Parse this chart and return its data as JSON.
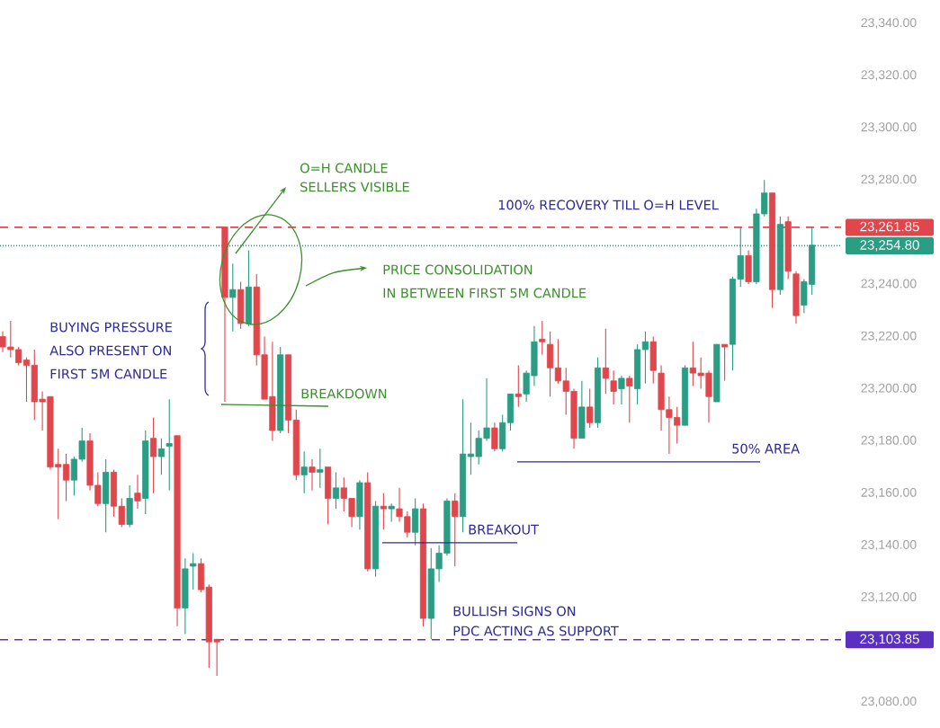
{
  "chart_data": {
    "type": "candlestick",
    "categories": [
      null,
      null,
      null,
      null,
      null,
      null,
      null,
      null,
      null,
      null,
      null,
      null,
      null,
      null,
      null,
      null,
      null,
      null,
      null,
      null,
      null,
      null,
      null,
      null,
      null,
      null,
      null,
      null,
      null,
      null,
      null,
      null,
      null,
      null,
      null,
      null,
      null,
      null,
      null,
      null,
      null,
      null,
      null,
      null,
      null,
      null,
      null,
      null,
      null,
      null,
      null,
      null,
      null,
      null,
      null,
      null,
      null,
      null,
      null,
      null,
      null,
      null,
      null,
      null,
      null,
      null,
      null,
      null,
      null,
      null,
      null,
      null,
      null,
      null,
      null,
      null,
      null,
      null,
      null,
      null,
      null,
      null,
      null,
      null,
      null,
      null,
      null,
      null,
      null,
      null,
      null,
      null,
      null,
      null,
      null,
      null,
      null,
      null,
      null,
      null,
      null,
      null,
      null
    ],
    "ohlc": [
      [
        23220,
        23222,
        23214,
        23216
      ],
      [
        23216,
        23226,
        23212,
        23215
      ],
      [
        23215,
        23216,
        23209,
        23210
      ],
      [
        23211,
        23212,
        23195,
        23209
      ],
      [
        23209,
        23215,
        23188,
        23195
      ],
      [
        23196,
        23199,
        23184,
        23195
      ],
      [
        23197,
        23197,
        23169,
        23170
      ],
      [
        23171,
        23177,
        23150,
        23170
      ],
      [
        23171,
        23175,
        23157,
        23165
      ],
      [
        23165,
        23174,
        23159,
        23173
      ],
      [
        23173,
        23185,
        23172,
        23180
      ],
      [
        23180,
        23183,
        23161,
        23163
      ],
      [
        23163,
        23168,
        23155,
        23156
      ],
      [
        23156,
        23173,
        23145,
        23168
      ],
      [
        23168,
        23169,
        23151,
        23155
      ],
      [
        23155,
        23158,
        23147,
        23148
      ],
      [
        23148,
        23163,
        23147,
        23158
      ],
      [
        23160,
        23167,
        23154,
        23157
      ],
      [
        23158,
        23184,
        23152,
        23180
      ],
      [
        23181,
        23189,
        23160,
        23174
      ],
      [
        23174,
        23181,
        23167,
        23177
      ],
      [
        23178,
        23196,
        23161,
        23179
      ],
      [
        23182,
        23182,
        23109,
        23116
      ],
      [
        23116,
        23135,
        23106,
        23131
      ],
      [
        23132,
        23137,
        23123,
        23133
      ],
      [
        23133,
        23135,
        23122,
        23123
      ],
      [
        23124,
        23125,
        23093,
        23103
      ],
      [
        23104,
        23104,
        23090,
        23103
      ],
      [
        23262,
        23262,
        23195,
        23235
      ],
      [
        23235,
        23248,
        23222,
        23238
      ],
      [
        23238,
        23241,
        23223,
        23225
      ],
      [
        23225,
        23253,
        23224,
        23239
      ],
      [
        23239,
        23244,
        23209,
        23213
      ],
      [
        23213,
        23220,
        23196,
        23196
      ],
      [
        23197,
        23218,
        23180,
        23184
      ],
      [
        23184,
        23216,
        23183,
        23213
      ],
      [
        23213,
        23213,
        23183,
        23188
      ],
      [
        23188,
        23192,
        23165,
        23167
      ],
      [
        23167,
        23176,
        23160,
        23170
      ],
      [
        23170,
        23173,
        23161,
        23168
      ],
      [
        23168,
        23177,
        23162,
        23169
      ],
      [
        23170,
        23170,
        23148,
        23158
      ],
      [
        23158,
        23168,
        23154,
        23162
      ],
      [
        23162,
        23166,
        23153,
        23158
      ],
      [
        23158,
        23158,
        23147,
        23151
      ],
      [
        23151,
        23165,
        23146,
        23164
      ],
      [
        23164,
        23168,
        23130,
        23131
      ],
      [
        23131,
        23157,
        23128,
        23155
      ],
      [
        23155,
        23160,
        23146,
        23154
      ],
      [
        23154,
        23156,
        23149,
        23155
      ],
      [
        23154,
        23162,
        23149,
        23151
      ],
      [
        23151,
        23153,
        23143,
        23145
      ],
      [
        23145,
        23158,
        23140,
        23154
      ],
      [
        23154,
        23156,
        23109,
        23112
      ],
      [
        23112,
        23139,
        23104,
        23131
      ],
      [
        23131,
        23140,
        23126,
        23137
      ],
      [
        23137,
        23158,
        23136,
        23157
      ],
      [
        23157,
        23160,
        23132,
        23151
      ],
      [
        23151,
        23196,
        23145,
        23175
      ],
      [
        23174,
        23187,
        23167,
        23175
      ],
      [
        23174,
        23184,
        23171,
        23181
      ],
      [
        23181,
        23204,
        23180,
        23185
      ],
      [
        23185,
        23187,
        23176,
        23177
      ],
      [
        23177,
        23190,
        23176,
        23187
      ],
      [
        23187,
        23198,
        23184,
        23198
      ],
      [
        23198,
        23209,
        23193,
        23197
      ],
      [
        23198,
        23207,
        23195,
        23206
      ],
      [
        23205,
        23224,
        23201,
        23218
      ],
      [
        23219,
        23226,
        23213,
        23218
      ],
      [
        23217,
        23222,
        23197,
        23208
      ],
      [
        23208,
        23219,
        23202,
        23203
      ],
      [
        23203,
        23208,
        23190,
        23199
      ],
      [
        23199,
        23200,
        23177,
        23181
      ],
      [
        23181,
        23203,
        23181,
        23193
      ],
      [
        23193,
        23200,
        23185,
        23187
      ],
      [
        23187,
        23212,
        23185,
        23208
      ],
      [
        23208,
        23223,
        23198,
        23204
      ],
      [
        23203,
        23207,
        23194,
        23199
      ],
      [
        23200,
        23205,
        23194,
        23204
      ],
      [
        23204,
        23205,
        23187,
        23201
      ],
      [
        23200,
        23217,
        23194,
        23215
      ],
      [
        23215,
        23222,
        23202,
        23218
      ],
      [
        23218,
        23220,
        23202,
        23207
      ],
      [
        23206,
        23209,
        23184,
        23192
      ],
      [
        23192,
        23197,
        23175,
        23189
      ],
      [
        23189,
        23193,
        23179,
        23186
      ],
      [
        23186,
        23209,
        23186,
        23208
      ],
      [
        23208,
        23218,
        23201,
        23206
      ],
      [
        23206,
        23212,
        23200,
        23205
      ],
      [
        23206,
        23207,
        23187,
        23197
      ],
      [
        23195,
        23217,
        23195,
        23217
      ],
      [
        23217,
        23217,
        23203,
        23216
      ],
      [
        23217,
        23243,
        23207,
        23242
      ],
      [
        23242,
        23262,
        23239,
        23251
      ],
      [
        23251,
        23253,
        23240,
        23241
      ],
      [
        23241,
        23269,
        23240,
        23267
      ],
      [
        23267,
        23280,
        23266,
        23275
      ],
      [
        23275,
        23275,
        23231,
        23238
      ],
      [
        23238,
        23266,
        23236,
        23263
      ],
      [
        23264,
        23266,
        23242,
        23245
      ],
      [
        23244,
        23245,
        23225,
        23228
      ],
      [
        23232,
        23242,
        23229,
        23241
      ],
      [
        23240,
        23262,
        23236,
        23255
      ]
    ],
    "ylim": [
      23080,
      23340
    ],
    "yticks": [
      {
        "value": 23080,
        "label": "23,080.00"
      },
      {
        "value": 23120,
        "label": "23,120.00"
      },
      {
        "value": 23140,
        "label": "23,140.00"
      },
      {
        "value": 23160,
        "label": "23,160.00"
      },
      {
        "value": 23180,
        "label": "23,180.00"
      },
      {
        "value": 23200,
        "label": "23,200.00"
      },
      {
        "value": 23220,
        "label": "23,220.00"
      },
      {
        "value": 23240,
        "label": "23,240.00"
      },
      {
        "value": 23280,
        "label": "23,280.00"
      },
      {
        "value": 23300,
        "label": "23,300.00"
      },
      {
        "value": 23320,
        "label": "23,320.00"
      },
      {
        "value": 23340,
        "label": "23,340.00"
      }
    ],
    "tick_labels": "y",
    "ref_lines": [
      {
        "axis": "y",
        "value": 23261.85,
        "label": "23,261.85",
        "color": "#e0474c",
        "line_style": "dashed"
      },
      {
        "axis": "y",
        "value": 23254.8,
        "label": "23,254.80",
        "color": "#2a9d84",
        "line_style": "dotted"
      },
      {
        "axis": "y",
        "value": 23103.85,
        "label": "23,103.85",
        "color": "#5b2fc0",
        "line_style": "dashed"
      },
      {
        "axis": "y",
        "value": 23172,
        "label": "50% AREA",
        "color": "#2f2a9c",
        "line_style": "solid"
      },
      {
        "axis": "y",
        "value": 23141,
        "label": "BREAKOUT",
        "color": "#2f2a9c",
        "line_style": "solid"
      }
    ],
    "annotations": [
      "O=H CANDLE",
      "SELLERS VISIBLE",
      "100% RECOVERY TILL O=H LEVEL",
      "PRICE CONSOLIDATION",
      "IN BETWEEN FIRST 5M CANDLE",
      "BUYING PRESSURE",
      "ALSO PRESENT ON",
      "FIRST 5M CANDLE",
      "BREAKDOWN",
      "BULLISH SIGNS ON",
      "PDC ACTING AS SUPPORT"
    ]
  }
}
